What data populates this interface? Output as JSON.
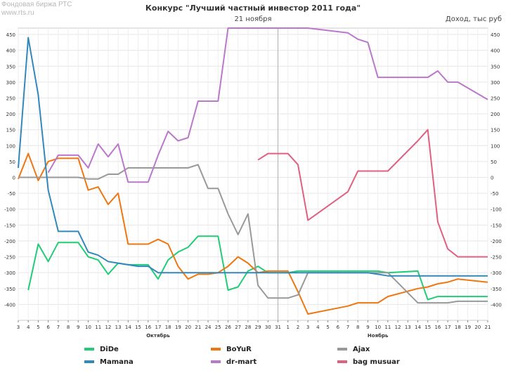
{
  "watermark": {
    "line1": "Фондовая биржа РТС",
    "line2": "www.rts.ru"
  },
  "header": {
    "title": "Конкурс \"Лучший частный инвестор 2011 года\"",
    "subtitle": "21 ноября",
    "unit": "Доход, тыс руб"
  },
  "chart_data": {
    "type": "line",
    "title": "Конкурс \"Лучший частный инвестор 2011 года\"",
    "subtitle": "21 ноября",
    "ylabel": "Доход, тыс руб",
    "ylim": [
      -450,
      470
    ],
    "yticks": [
      450,
      400,
      350,
      300,
      250,
      200,
      150,
      100,
      50,
      0,
      -50,
      -100,
      -150,
      -200,
      -250,
      -300,
      -350,
      -400
    ],
    "grid": true,
    "legend_position": "bottom",
    "x": [
      "3",
      "4",
      "5",
      "6",
      "7",
      "8",
      "9",
      "10",
      "11",
      "12",
      "13",
      "14",
      "15",
      "16",
      "17",
      "18",
      "19",
      "20",
      "21",
      "24",
      "25",
      "26",
      "27",
      "28",
      "29",
      "30",
      "31",
      "1",
      "2",
      "3",
      "7",
      "8",
      "9",
      "10",
      "11",
      "14",
      "15",
      "16",
      "17",
      "18",
      "21"
    ],
    "xticks": [
      "3",
      "4",
      "5",
      "6",
      "7",
      "8",
      "9",
      "10",
      "11",
      "12",
      "13",
      "14",
      "15",
      "16",
      "17",
      "18",
      "19",
      "20",
      "21",
      "24",
      "25",
      "26",
      "27",
      "28",
      "29",
      "30",
      "31",
      "1",
      "2",
      "3",
      "4",
      "5",
      "6",
      "7",
      "8",
      "9",
      "10",
      "11",
      "12",
      "13",
      "14",
      "15",
      "16",
      "17",
      "18",
      "19",
      "20",
      "21"
    ],
    "month_labels": [
      {
        "label": "Октябрь",
        "at": "17"
      },
      {
        "label": "Ноябрь",
        "at": "10"
      }
    ],
    "month_divider": "31",
    "series": [
      {
        "name": "DiDe",
        "color": "#22cc77",
        "values": [
          null,
          -355,
          -210,
          -265,
          -205,
          -205,
          -205,
          -250,
          -260,
          -305,
          -270,
          -275,
          -275,
          -275,
          -320,
          -260,
          -235,
          -220,
          -185,
          -185,
          -185,
          -355,
          -345,
          -295,
          -280,
          -300,
          -300,
          -300,
          -295,
          -295,
          -295,
          -295,
          -295,
          -295,
          -300,
          -295,
          -385,
          -375,
          -375,
          -375,
          -375
        ]
      },
      {
        "name": "BoYuR",
        "color": "#ee7711",
        "values": [
          -5,
          75,
          -10,
          50,
          60,
          60,
          60,
          -40,
          -30,
          -85,
          -50,
          -210,
          -210,
          -210,
          -195,
          -210,
          -280,
          -320,
          -305,
          -305,
          -300,
          -280,
          -250,
          -270,
          -300,
          -295,
          -295,
          -295,
          -360,
          -430,
          -405,
          -395,
          -395,
          -395,
          -375,
          -350,
          -345,
          -335,
          -330,
          -320,
          -330
        ]
      },
      {
        "name": "Ajax",
        "color": "#999999",
        "values": [
          0,
          0,
          0,
          0,
          0,
          0,
          0,
          -5,
          -5,
          10,
          10,
          30,
          30,
          30,
          30,
          30,
          30,
          30,
          40,
          -35,
          -35,
          -115,
          -180,
          -115,
          -340,
          -380,
          -380,
          -380,
          -370,
          -300,
          -300,
          -300,
          -300,
          -300,
          -300,
          -395,
          -395,
          -395,
          -395,
          -390,
          -390
        ]
      },
      {
        "name": "Mamana",
        "color": "#3388bb",
        "values": [
          30,
          440,
          260,
          -40,
          -170,
          -170,
          -170,
          -235,
          -245,
          -265,
          -270,
          -275,
          -280,
          -280,
          -300,
          -300,
          -300,
          -300,
          -300,
          -300,
          -300,
          -300,
          -300,
          -300,
          -300,
          -300,
          -300,
          -300,
          -300,
          -300,
          -300,
          -300,
          -300,
          -305,
          -310,
          -310,
          -310,
          -310,
          -310,
          -310,
          -310
        ]
      },
      {
        "name": "dr-mart",
        "color": "#bb77cc",
        "values": [
          null,
          null,
          null,
          15,
          70,
          70,
          70,
          30,
          105,
          65,
          105,
          -15,
          -15,
          -15,
          70,
          145,
          115,
          125,
          240,
          240,
          240,
          470,
          470,
          470,
          470,
          470,
          470,
          470,
          470,
          470,
          455,
          435,
          425,
          315,
          315,
          315,
          315,
          335,
          300,
          300,
          245
        ]
      },
      {
        "name": "bag musuar",
        "color": "#e06080",
        "values": [
          null,
          null,
          null,
          null,
          null,
          null,
          null,
          null,
          null,
          null,
          null,
          null,
          null,
          null,
          null,
          null,
          null,
          null,
          null,
          null,
          null,
          null,
          null,
          null,
          55,
          75,
          75,
          75,
          40,
          -135,
          -45,
          20,
          20,
          20,
          20,
          115,
          150,
          -140,
          -225,
          -250,
          -250
        ]
      }
    ],
    "series_raw_x": [
      {
        "name": "DiDe",
        "x": [
          "4",
          "5",
          "6",
          "7",
          "9",
          "10",
          "11",
          "12",
          "13",
          "14",
          "16",
          "17",
          "18",
          "19",
          "20",
          "21",
          "23",
          "24",
          "25",
          "26",
          "27",
          "28",
          "30",
          "31",
          "32",
          "33",
          "34",
          "35",
          "36",
          "37",
          "38",
          "39",
          "40",
          "41",
          "42",
          "43",
          "44",
          "45",
          "46",
          "47",
          "48"
        ],
        "y": [
          -355,
          -210,
          -265,
          -205,
          -205,
          -250,
          -260,
          -305,
          -270,
          -275,
          -275,
          -320,
          -260,
          -235,
          -220,
          -185,
          -185,
          -355,
          -345,
          -295,
          -280,
          -300,
          -300,
          -300,
          -295,
          -295,
          -295,
          -295,
          -295,
          -295,
          -300,
          -295,
          -385,
          -375,
          -375,
          -375,
          -375,
          -370,
          -310,
          -340,
          -340
        ]
      }
    ]
  },
  "legend": [
    {
      "label": "DiDe",
      "color": "#22cc77"
    },
    {
      "label": "BoYuR",
      "color": "#ee7711"
    },
    {
      "label": "Ajax",
      "color": "#999999"
    },
    {
      "label": "Mamana",
      "color": "#3388bb"
    },
    {
      "label": "dr-mart",
      "color": "#bb77cc"
    },
    {
      "label": "bag musuar",
      "color": "#e06080"
    }
  ]
}
